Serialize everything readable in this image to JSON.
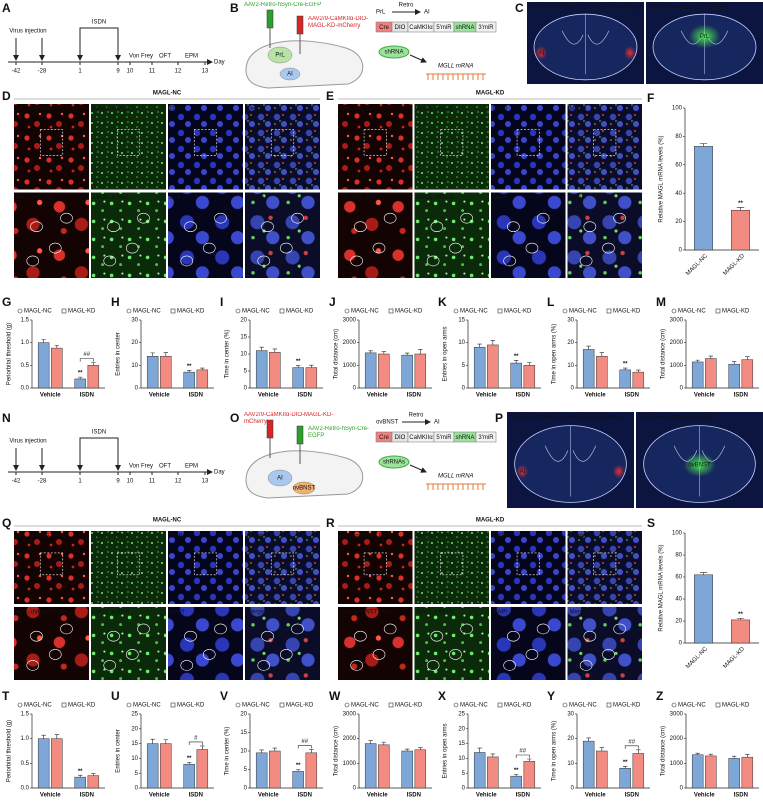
{
  "timelines": [
    {
      "letter": "A",
      "days": [
        -42,
        -28,
        1,
        9,
        10,
        11,
        12,
        13
      ],
      "unit": "Day",
      "injection": "Virus injection",
      "treatment": "ISDN",
      "tests": [
        "Von Frey",
        "OFT",
        "EPM"
      ]
    },
    {
      "letter": "N",
      "days": [
        -42,
        -28,
        1,
        9,
        10,
        11,
        12,
        13
      ],
      "unit": "Day",
      "injection": "Virus injection",
      "treatment": "ISDN",
      "tests": [
        "Von Frey",
        "OFT",
        "EPM"
      ]
    }
  ],
  "schematics": [
    {
      "letter": "B",
      "viruses": [
        "AAV2-Retro-hSyn-Cre-EGFP",
        "AAV2/9-CaMKIIα-DIO-MAGL-KD-mCherry"
      ],
      "virus_colors": [
        "#2ca02c",
        "#d62728"
      ],
      "regions": [
        "PrL",
        "AI"
      ],
      "retro": "Retro",
      "projection": [
        "PrL",
        "AI"
      ],
      "construct": [
        "Cre",
        "DIO",
        "CaMKIIα",
        "5'miR",
        "shRNA",
        "3'miR"
      ],
      "hairpin": "shRNA",
      "target": "MGLL mRNA"
    },
    {
      "letter": "O",
      "viruses": [
        "AAV2/9-CaMKIIα-DIO-MAGL-KD-mCherry",
        "AAV2-Retro-hSyn-Cre-EGFP"
      ],
      "virus_colors": [
        "#d62728",
        "#2ca02c"
      ],
      "regions": [
        "AI",
        "ovBNST"
      ],
      "retro": "Retro",
      "projection": [
        "ovBNST",
        "AI"
      ],
      "construct": [
        "Cre",
        "DIO",
        "CaMKIIα",
        "5'miR",
        "shRNA",
        "3'miR"
      ],
      "hairpin": "shRNAs",
      "target": "MGLL mRNA"
    }
  ],
  "sections": [
    {
      "letter": "C",
      "images": [
        {
          "label": "AAV2/9-CaMKIIα-DIO-MAGL-KD-mCherry",
          "color": "#ff4a4a",
          "regions": [
            "AI"
          ]
        },
        {
          "label": "AAV2-Retro-hSyn-Cre-EGFP",
          "color": "#4ae04a",
          "regions": [
            "PrL"
          ]
        }
      ]
    },
    {
      "letter": "P",
      "images": [
        {
          "label": "AAV2/9-CaMKIIα-DIO-MAGL-KD-mCherry",
          "color": "#ff4a4a",
          "regions": [
            "AI"
          ]
        },
        {
          "label": "AAV2-Retro-hSyn-Cre-EGFP",
          "color": "#4ae04a",
          "regions": [
            "ovBNST"
          ]
        }
      ]
    }
  ],
  "micrographs": [
    {
      "letter": "D",
      "title": "MAGL-NC",
      "channels": [
        "vAI→PrL PNs",
        "MAGL mRNA",
        "DAPI",
        "Merge"
      ]
    },
    {
      "letter": "E",
      "title": "MAGL-KD",
      "channels": [
        "vAI→PrL PNs",
        "MAGL mRNA",
        "DAPI",
        "Merge"
      ]
    },
    {
      "letter": "Q",
      "title": "MAGL-NC",
      "channels": [
        "dAI→ovBNST PNs",
        "MAGL mRNA",
        "DAPI",
        "Merge"
      ]
    },
    {
      "letter": "R",
      "title": "MAGL-KD",
      "channels": [
        "dAI→ovBNST PNs",
        "MAGL mRNA",
        "DAPI",
        "Merge"
      ]
    }
  ],
  "chart_data": [
    {
      "letter": "F",
      "type": "bar",
      "y_label": "Relative MAGL mRNA levels (%)",
      "categories": [
        "MAGL-NC",
        "MAGL-KD"
      ],
      "values": [
        73,
        28
      ],
      "colors": [
        "#7ea7d8",
        "#f28b82"
      ],
      "errors": [
        2,
        2
      ],
      "significance": [
        null,
        "**"
      ],
      "ylim": [
        0,
        100
      ],
      "yticks": [
        0,
        20,
        40,
        60,
        80,
        100
      ]
    },
    {
      "letter": "G",
      "type": "bar",
      "y_label": "Periorbital threshold (g)",
      "categories": [
        "Vehicle",
        "ISDN"
      ],
      "series": [
        {
          "name": "MAGL-NC",
          "color": "#7ea7d8",
          "values": [
            1.0,
            0.2
          ],
          "errors": [
            0.07,
            0.04
          ],
          "significance": [
            null,
            "**"
          ]
        },
        {
          "name": "MAGL-KD",
          "color": "#f28b82",
          "values": [
            0.88,
            0.5
          ],
          "errors": [
            0.06,
            0.06
          ],
          "significance": [
            null,
            null
          ]
        }
      ],
      "bracket_labels": [
        null,
        "##"
      ],
      "ylim": [
        0,
        1.5
      ],
      "yticks": [
        {
          "value": 0,
          "label": "0.0"
        },
        0.5,
        {
          "value": 1,
          "label": "1.0"
        },
        1.5
      ]
    },
    {
      "letter": "H",
      "type": "bar",
      "y_label": "Entries in center",
      "categories": [
        "Vehicle",
        "ISDN"
      ],
      "series": [
        {
          "name": "MAGL-NC",
          "color": "#7ea7d8",
          "values": [
            14,
            7
          ],
          "errors": [
            1.5,
            0.8
          ],
          "significance": [
            null,
            "**"
          ]
        },
        {
          "name": "MAGL-KD",
          "color": "#f28b82",
          "values": [
            14,
            8
          ],
          "errors": [
            1.6,
            0.8
          ],
          "significance": [
            null,
            null
          ]
        }
      ],
      "ylim": [
        0,
        30
      ],
      "yticks": [
        0,
        10,
        20,
        30
      ]
    },
    {
      "letter": "I",
      "type": "bar",
      "y_label": "Time in center (%)",
      "categories": [
        "Vehicle",
        "ISDN"
      ],
      "series": [
        {
          "name": "MAGL-NC",
          "color": "#7ea7d8",
          "values": [
            11,
            6
          ],
          "errors": [
            1,
            0.6
          ],
          "significance": [
            null,
            "**"
          ]
        },
        {
          "name": "MAGL-KD",
          "color": "#f28b82",
          "values": [
            10.5,
            6
          ],
          "errors": [
            1,
            0.7
          ],
          "significance": [
            null,
            null
          ]
        }
      ],
      "ylim": [
        0,
        20
      ],
      "yticks": [
        0,
        5,
        10,
        15,
        20
      ]
    },
    {
      "letter": "J",
      "type": "bar",
      "y_label": "Total distance (cm)",
      "categories": [
        "Vehicle",
        "ISDN"
      ],
      "series": [
        {
          "name": "MAGL-NC",
          "color": "#7ea7d8",
          "values": [
            1550,
            1450
          ],
          "errors": [
            90,
            90
          ],
          "significance": [
            null,
            null
          ]
        },
        {
          "name": "MAGL-KD",
          "color": "#f28b82",
          "values": [
            1500,
            1500
          ],
          "errors": [
            100,
            200
          ],
          "significance": [
            null,
            null
          ]
        }
      ],
      "ylim": [
        0,
        3000
      ],
      "yticks": [
        0,
        1000,
        2000,
        3000
      ]
    },
    {
      "letter": "K",
      "type": "bar",
      "y_label": "Entries in open arms",
      "categories": [
        "Vehicle",
        "ISDN"
      ],
      "series": [
        {
          "name": "MAGL-NC",
          "color": "#7ea7d8",
          "values": [
            9,
            5.5
          ],
          "errors": [
            0.7,
            0.6
          ],
          "significance": [
            null,
            "**"
          ]
        },
        {
          "name": "MAGL-KD",
          "color": "#f28b82",
          "values": [
            9.5,
            5
          ],
          "errors": [
            1,
            0.6
          ],
          "significance": [
            null,
            null
          ]
        }
      ],
      "ylim": [
        0,
        15
      ],
      "yticks": [
        0,
        5,
        10,
        15
      ]
    },
    {
      "letter": "L",
      "type": "bar",
      "y_label": "Time in open arms (%)",
      "categories": [
        "Vehicle",
        "ISDN"
      ],
      "series": [
        {
          "name": "MAGL-NC",
          "color": "#7ea7d8",
          "values": [
            17,
            8
          ],
          "errors": [
            1.5,
            0.8
          ],
          "significance": [
            null,
            "**"
          ]
        },
        {
          "name": "MAGL-KD",
          "color": "#f28b82",
          "values": [
            14,
            7
          ],
          "errors": [
            1.6,
            0.9
          ],
          "significance": [
            null,
            null
          ]
        }
      ],
      "ylim": [
        0,
        30
      ],
      "yticks": [
        0,
        10,
        20,
        30
      ]
    },
    {
      "letter": "M",
      "type": "bar",
      "y_label": "Total distance (cm)",
      "categories": [
        "Vehicle",
        "ISDN"
      ],
      "series": [
        {
          "name": "MAGL-NC",
          "color": "#7ea7d8",
          "values": [
            1150,
            1050
          ],
          "errors": [
            80,
            120
          ],
          "significance": [
            null,
            null
          ]
        },
        {
          "name": "MAGL-KD",
          "color": "#f28b82",
          "values": [
            1300,
            1250
          ],
          "errors": [
            110,
            130
          ],
          "significance": [
            null,
            null
          ]
        }
      ],
      "ylim": [
        0,
        3000
      ],
      "yticks": [
        0,
        1000,
        2000,
        3000
      ]
    },
    {
      "letter": "S",
      "type": "bar",
      "y_label": "Relative MAGL mRNA levels (%)",
      "categories": [
        "MAGL-NC",
        "MAGL-KD"
      ],
      "values": [
        62,
        21
      ],
      "colors": [
        "#7ea7d8",
        "#f28b82"
      ],
      "errors": [
        2,
        1.5
      ],
      "significance": [
        null,
        "**"
      ],
      "ylim": [
        0,
        100
      ],
      "yticks": [
        0,
        20,
        40,
        60,
        80,
        100
      ]
    },
    {
      "letter": "T",
      "type": "bar",
      "y_label": "Periorbital threshold (g)",
      "categories": [
        "Vehicle",
        "ISDN"
      ],
      "series": [
        {
          "name": "MAGL-NC",
          "color": "#7ea7d8",
          "values": [
            1.0,
            0.22
          ],
          "errors": [
            0.07,
            0.04
          ],
          "significance": [
            null,
            "**"
          ]
        },
        {
          "name": "MAGL-KD",
          "color": "#f28b82",
          "values": [
            1.0,
            0.25
          ],
          "errors": [
            0.08,
            0.04
          ],
          "significance": [
            null,
            null
          ]
        }
      ],
      "ylim": [
        0,
        1.5
      ],
      "yticks": [
        {
          "value": 0,
          "label": "0.0"
        },
        0.5,
        {
          "value": 1,
          "label": "1.0"
        },
        1.5
      ]
    },
    {
      "letter": "U",
      "type": "bar",
      "y_label": "Entries in center",
      "categories": [
        "Vehicle",
        "ISDN"
      ],
      "series": [
        {
          "name": "MAGL-NC",
          "color": "#7ea7d8",
          "values": [
            15,
            8
          ],
          "errors": [
            1.5,
            0.7
          ],
          "significance": [
            null,
            "**"
          ]
        },
        {
          "name": "MAGL-KD",
          "color": "#f28b82",
          "values": [
            15,
            13
          ],
          "errors": [
            1.3,
            1.2
          ],
          "significance": [
            null,
            null
          ]
        }
      ],
      "bracket_labels": [
        null,
        "#"
      ],
      "ylim": [
        0,
        25
      ],
      "yticks": [
        0,
        5,
        10,
        15,
        20,
        25
      ]
    },
    {
      "letter": "V",
      "type": "bar",
      "y_label": "Time in center (%)",
      "categories": [
        "Vehicle",
        "ISDN"
      ],
      "series": [
        {
          "name": "MAGL-NC",
          "color": "#7ea7d8",
          "values": [
            9.5,
            4.5
          ],
          "errors": [
            0.8,
            0.5
          ],
          "significance": [
            null,
            "**"
          ]
        },
        {
          "name": "MAGL-KD",
          "color": "#f28b82",
          "values": [
            10,
            9.5
          ],
          "errors": [
            0.8,
            0.9
          ],
          "significance": [
            null,
            null
          ]
        }
      ],
      "bracket_labels": [
        null,
        "##"
      ],
      "ylim": [
        0,
        20
      ],
      "yticks": [
        0,
        5,
        10,
        15,
        20
      ]
    },
    {
      "letter": "W",
      "type": "bar",
      "y_label": "Total distance (cm)",
      "categories": [
        "Vehicle",
        "ISDN"
      ],
      "series": [
        {
          "name": "MAGL-NC",
          "color": "#7ea7d8",
          "values": [
            1800,
            1500
          ],
          "errors": [
            120,
            80
          ],
          "significance": [
            null,
            null
          ]
        },
        {
          "name": "MAGL-KD",
          "color": "#f28b82",
          "values": [
            1750,
            1550
          ],
          "errors": [
            110,
            90
          ],
          "significance": [
            null,
            null
          ]
        }
      ],
      "ylim": [
        0,
        3000
      ],
      "yticks": [
        0,
        1000,
        2000,
        3000
      ]
    },
    {
      "letter": "X",
      "type": "bar",
      "y_label": "Entries in open arms",
      "categories": [
        "Vehicle",
        "ISDN"
      ],
      "series": [
        {
          "name": "MAGL-NC",
          "color": "#7ea7d8",
          "values": [
            12,
            4
          ],
          "errors": [
            1.5,
            0.6
          ],
          "significance": [
            null,
            "**"
          ]
        },
        {
          "name": "MAGL-KD",
          "color": "#f28b82",
          "values": [
            10.5,
            9
          ],
          "errors": [
            1,
            0.8
          ],
          "significance": [
            null,
            null
          ]
        }
      ],
      "bracket_labels": [
        null,
        "##"
      ],
      "ylim": [
        0,
        25
      ],
      "yticks": [
        0,
        5,
        10,
        15,
        20,
        25
      ]
    },
    {
      "letter": "Y",
      "type": "bar",
      "y_label": "Time in open arms (%)",
      "categories": [
        "Vehicle",
        "ISDN"
      ],
      "series": [
        {
          "name": "MAGL-NC",
          "color": "#7ea7d8",
          "values": [
            19,
            8
          ],
          "errors": [
            1.3,
            0.8
          ],
          "significance": [
            null,
            "**"
          ]
        },
        {
          "name": "MAGL-KD",
          "color": "#f28b82",
          "values": [
            15,
            14
          ],
          "errors": [
            1.4,
            1.5
          ],
          "significance": [
            null,
            null
          ]
        }
      ],
      "bracket_labels": [
        null,
        "##"
      ],
      "ylim": [
        0,
        30
      ],
      "yticks": [
        0,
        10,
        20,
        30
      ]
    },
    {
      "letter": "Z",
      "type": "bar",
      "y_label": "Total distance (cm)",
      "categories": [
        "Vehicle",
        "ISDN"
      ],
      "series": [
        {
          "name": "MAGL-NC",
          "color": "#7ea7d8",
          "values": [
            1350,
            1200
          ],
          "errors": [
            60,
            90
          ],
          "significance": [
            null,
            null
          ]
        },
        {
          "name": "MAGL-KD",
          "color": "#f28b82",
          "values": [
            1300,
            1250
          ],
          "errors": [
            70,
            110
          ],
          "significance": [
            null,
            null
          ]
        }
      ],
      "ylim": [
        0,
        3000
      ],
      "yticks": [
        0,
        1000,
        2000,
        3000
      ]
    }
  ]
}
